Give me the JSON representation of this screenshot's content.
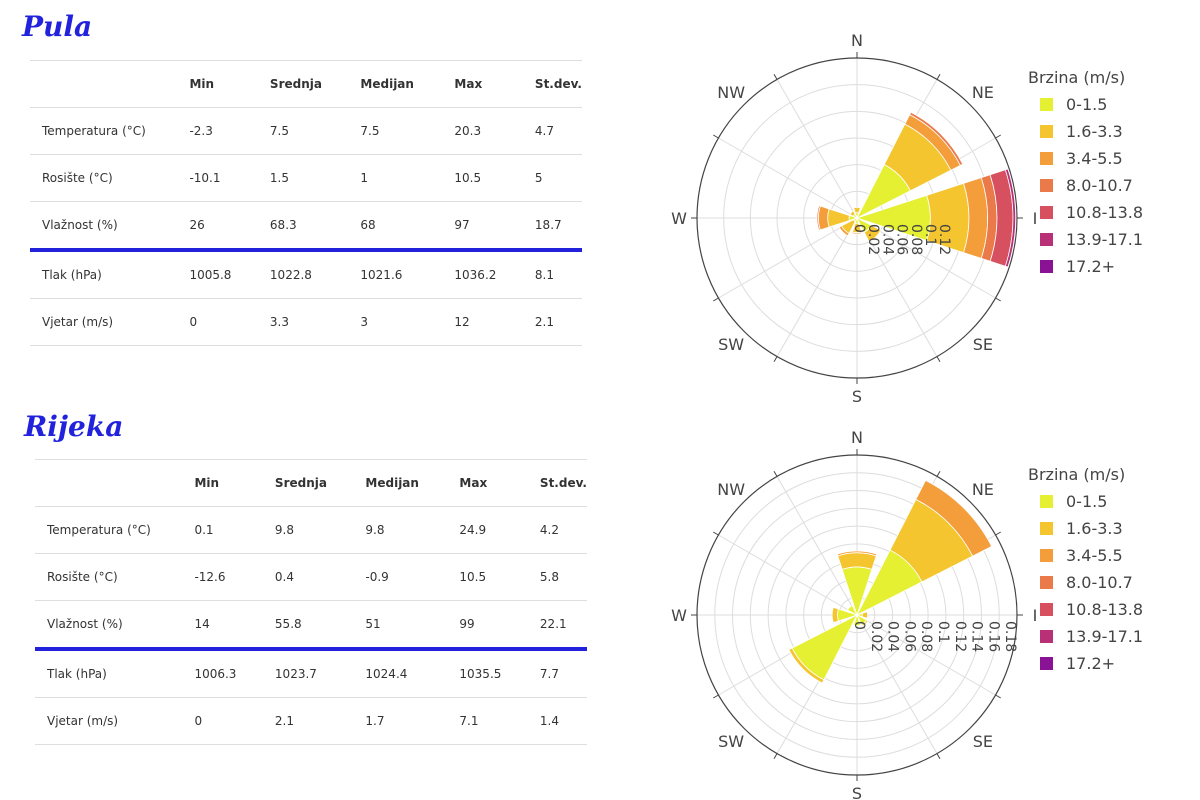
{
  "headers": [
    "",
    "Min",
    "Srednja",
    "Medijan",
    "Max",
    "St.dev."
  ],
  "highlight_row": "Vlažnost (%)",
  "directions": [
    "N",
    "NE",
    "I",
    "SE",
    "S",
    "SW",
    "W",
    "NW"
  ],
  "speed_bins": [
    "0-1.5",
    "1.6-3.3",
    "3.4-5.5",
    "8.0-10.7",
    "10.8-13.8",
    "13.9-17.1",
    "17.2+"
  ],
  "colors": [
    "#e5f033",
    "#f4c52e",
    "#f39e3a",
    "#ea7a4a",
    "#d6505f",
    "#b83176",
    "#8a1395"
  ],
  "highlight_color": "#2222dd",
  "cities": [
    {
      "name": "Pula",
      "rows": [
        [
          "Temperatura (°C)",
          "-2.3",
          "7.5",
          "7.5",
          "20.3",
          "4.7"
        ],
        [
          "Rosište (°C)",
          "-10.1",
          "1.5",
          "1",
          "10.5",
          "5"
        ],
        [
          "Vlažnost (%)",
          "26",
          "68.3",
          "68",
          "97",
          "18.7"
        ],
        [
          "Tlak (hPa)",
          "1005.8",
          "1022.8",
          "1021.6",
          "1036.2",
          "8.1"
        ],
        [
          "Vjetar (m/s)",
          "0",
          "3.3",
          "3",
          "12",
          "2.1"
        ]
      ]
    },
    {
      "name": "Rijeka",
      "rows": [
        [
          "Temperatura (°C)",
          "0.1",
          "9.8",
          "9.8",
          "24.9",
          "4.2"
        ],
        [
          "Rosište (°C)",
          "-12.6",
          "0.4",
          "-0.9",
          "10.5",
          "5.8"
        ],
        [
          "Vlažnost (%)",
          "14",
          "55.8",
          "51",
          "99",
          "22.1"
        ],
        [
          "Tlak (hPa)",
          "1006.3",
          "1023.7",
          "1024.4",
          "1035.5",
          "7.7"
        ],
        [
          "Vjetar (m/s)",
          "0",
          "2.1",
          "1.7",
          "7.1",
          "1.4"
        ]
      ]
    }
  ],
  "chart_data": [
    {
      "type": "wind-rose",
      "legend_title": "Brzina (m/s)",
      "legend_position": "right",
      "categories": [
        "N",
        "NE",
        "I",
        "SE",
        "S",
        "SW",
        "W",
        "NW"
      ],
      "radial_ticks": [
        "0",
        "0.02",
        "0.04",
        "0.06",
        "0.08",
        "0.1",
        "0.12"
      ],
      "radial_range": [
        0,
        0.12
      ],
      "series": [
        {
          "name": "0-1.5",
          "values": [
            0.004,
            0.045,
            0.055,
            0.012,
            0.004,
            0.003,
            0.006,
            0.003
          ]
        },
        {
          "name": "1.6-3.3",
          "values": [
            0.004,
            0.034,
            0.029,
            0.008,
            0.007,
            0.01,
            0.016,
            0.003
          ]
        },
        {
          "name": "3.4-5.5",
          "values": [
            0,
            0.008,
            0.014,
            0,
            0.001,
            0.002,
            0.007,
            0
          ]
        },
        {
          "name": "8.0-10.7",
          "values": [
            0,
            0.002,
            0.007,
            0,
            0,
            0,
            0.001,
            0
          ]
        },
        {
          "name": "10.8-13.8",
          "values": [
            0,
            0,
            0.012,
            0,
            0,
            0,
            0,
            0
          ]
        },
        {
          "name": "13.9-17.1",
          "values": [
            0,
            0,
            0.002,
            0,
            0,
            0,
            0,
            0
          ]
        },
        {
          "name": "17.2+",
          "values": [
            0,
            0,
            0,
            0,
            0,
            0,
            0,
            0
          ]
        }
      ]
    },
    {
      "type": "wind-rose",
      "legend_title": "Brzina (m/s)",
      "legend_position": "right",
      "categories": [
        "N",
        "NE",
        "I",
        "SE",
        "S",
        "SW",
        "W",
        "NW"
      ],
      "radial_ticks": [
        "0",
        "0.02",
        "0.04",
        "0.06",
        "0.08",
        "0.1",
        "0.12",
        "0.14",
        "0.16",
        "0.18"
      ],
      "radial_range": [
        0,
        0.18
      ],
      "series": [
        {
          "name": "0-1.5",
          "values": [
            0.054,
            0.082,
            0.006,
            0.012,
            0.012,
            0.082,
            0.022,
            0.012
          ]
        },
        {
          "name": "1.6-3.3",
          "values": [
            0.016,
            0.064,
            0.006,
            0.002,
            0,
            0.004,
            0.006,
            0
          ]
        },
        {
          "name": "3.4-5.5",
          "values": [
            0.002,
            0.024,
            0,
            0,
            0,
            0,
            0,
            0
          ]
        },
        {
          "name": "8.0-10.7",
          "values": [
            0,
            0,
            0,
            0,
            0,
            0,
            0,
            0
          ]
        },
        {
          "name": "10.8-13.8",
          "values": [
            0,
            0,
            0,
            0,
            0,
            0,
            0,
            0
          ]
        },
        {
          "name": "13.9-17.1",
          "values": [
            0,
            0,
            0,
            0,
            0,
            0,
            0,
            0
          ]
        },
        {
          "name": "17.2+",
          "values": [
            0,
            0,
            0,
            0,
            0,
            0,
            0,
            0
          ]
        }
      ]
    }
  ]
}
